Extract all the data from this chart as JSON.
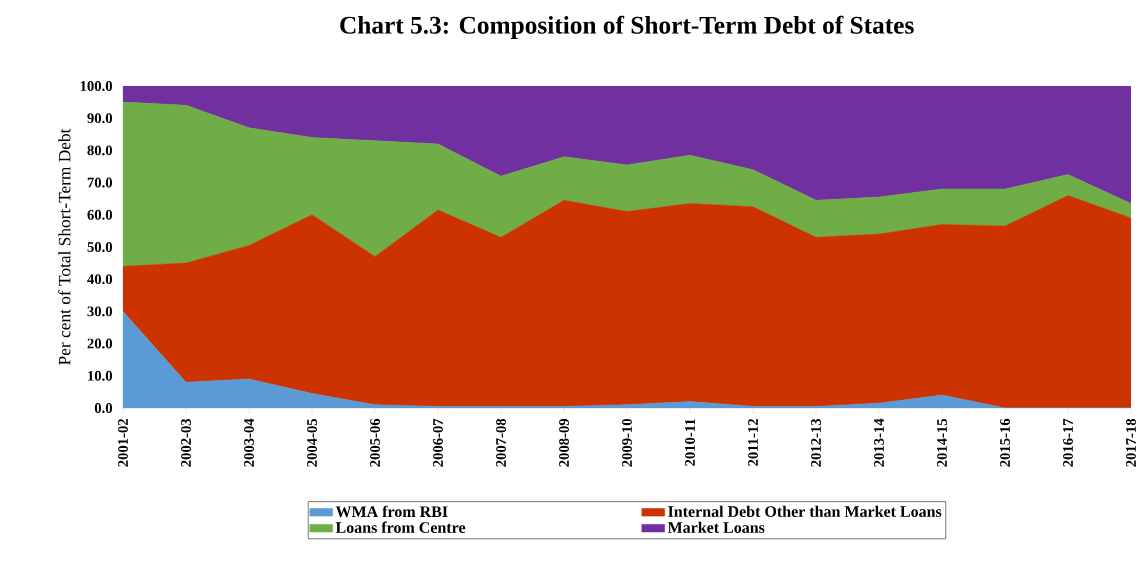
{
  "chart_data": {
    "type": "area",
    "title": "Chart 5.3: Composition of Short-Term Debt of States",
    "ylabel": "Per cent of Total Short-Term Debt",
    "categories": [
      "2001-02",
      "2002-03",
      "2003-04",
      "2004-05",
      "2005-06",
      "2006-07",
      "2007-08",
      "2008-09",
      "2009-10",
      "2010-11",
      "2011-12",
      "2012-13",
      "2013-14",
      "2014-15",
      "2015-16",
      "2016-17",
      "2017-18"
    ],
    "stacked": true,
    "series": [
      {
        "name": "WMA from RBI",
        "color": "#5b9bd5",
        "values": [
          30,
          8,
          9,
          4.5,
          1,
          0.5,
          0.5,
          0.5,
          1,
          2,
          0.5,
          0.5,
          1.5,
          4,
          0,
          0,
          0
        ]
      },
      {
        "name": "Internal Debt Other than Market Loans",
        "color": "#cc3300",
        "values": [
          14,
          37,
          41.5,
          55.5,
          46,
          61,
          52.5,
          64,
          60,
          61.5,
          62,
          52.5,
          52.5,
          53,
          56.5,
          66,
          59
        ]
      },
      {
        "name": "Loans from Centre",
        "color": "#70ad47",
        "values": [
          51,
          49,
          36.5,
          24,
          36,
          20.5,
          19,
          13.5,
          14.5,
          15,
          11.5,
          11.5,
          11.5,
          11,
          11.5,
          6.5,
          4.5
        ]
      },
      {
        "name": "Market Loans",
        "color": "#7030a0",
        "values": [
          5,
          6,
          13,
          16,
          17,
          18,
          28,
          22,
          24.5,
          21.5,
          26,
          35.5,
          34.5,
          32,
          32,
          27.5,
          36.5
        ]
      }
    ],
    "ylim": [
      0,
      100
    ],
    "yticks": [
      {
        "value": 0,
        "label": "0.0"
      },
      {
        "value": 10,
        "label": "10.0"
      },
      {
        "value": 20,
        "label": "20.0"
      },
      {
        "value": 30,
        "label": "30.0"
      },
      {
        "value": 40,
        "label": "40.0"
      },
      {
        "value": 50,
        "label": "50.0"
      },
      {
        "value": 60,
        "label": "60.0"
      },
      {
        "value": 70,
        "label": "70.0"
      },
      {
        "value": 80,
        "label": "80.0"
      },
      {
        "value": 90,
        "label": "90.0"
      },
      {
        "value": 100,
        "label": "100.0"
      }
    ],
    "grid": false,
    "legend": "bottom"
  }
}
